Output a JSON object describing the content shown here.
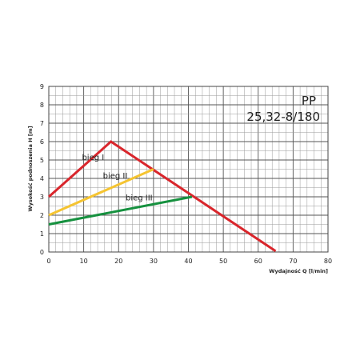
{
  "chart_data": {
    "type": "line",
    "title_line1": "PP",
    "title_line2": "25,32-8/180",
    "xlabel": "Wydajność Q [l/min]",
    "ylabel": "Wysokość podnoszenia H [m]",
    "xlim": [
      0,
      80
    ],
    "ylim": [
      0,
      9
    ],
    "x_ticks": [
      "0",
      "10",
      "20",
      "30",
      "40",
      "50",
      "60",
      "70",
      "80"
    ],
    "y_ticks": [
      "0",
      "1",
      "2",
      "3",
      "4",
      "5",
      "6",
      "7",
      "8",
      "9"
    ],
    "grid": true,
    "series": [
      {
        "name": "bieg I",
        "color": "#d9262c",
        "points": [
          [
            0,
            3.0
          ],
          [
            17.8,
            6.0
          ],
          [
            65,
            0.05
          ]
        ]
      },
      {
        "name": "bieg II",
        "color": "#f5c431",
        "points": [
          [
            0,
            2.0
          ],
          [
            30,
            4.5
          ]
        ]
      },
      {
        "name": "bieg III",
        "color": "#16913f",
        "points": [
          [
            0,
            1.5
          ],
          [
            41,
            3.0
          ]
        ]
      }
    ],
    "labels": [
      {
        "text": "bieg I",
        "x": 9.5,
        "y": 5.0
      },
      {
        "text": "bieg II",
        "x": 15.5,
        "y": 4.0
      },
      {
        "text": "bieg III",
        "x": 22,
        "y": 2.8
      }
    ]
  }
}
